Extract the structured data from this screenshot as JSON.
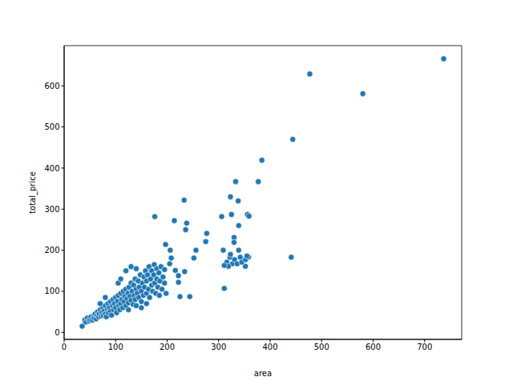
{
  "chart_data": {
    "type": "scatter",
    "x_label": "area",
    "y_label": "total_price",
    "color": "#1f77b4",
    "marker": "circle",
    "xlim": [
      0,
      772
    ],
    "ylim": [
      -17,
      698
    ],
    "xticks": [
      0,
      100,
      200,
      300,
      400,
      500,
      600,
      700
    ],
    "yticks": [
      0,
      100,
      200,
      300,
      400,
      500,
      600
    ],
    "x": [
      35,
      40,
      42,
      45,
      48,
      50,
      52,
      55,
      57,
      58,
      60,
      62,
      64,
      65,
      67,
      68,
      70,
      72,
      73,
      75,
      76,
      78,
      80,
      80,
      82,
      84,
      85,
      86,
      88,
      90,
      90,
      92,
      94,
      95,
      96,
      98,
      100,
      100,
      102,
      104,
      105,
      106,
      108,
      110,
      110,
      112,
      114,
      115,
      116,
      118,
      120,
      120,
      122,
      124,
      125,
      126,
      128,
      130,
      130,
      132,
      134,
      135,
      136,
      138,
      138,
      140,
      140,
      142,
      144,
      145,
      146,
      148,
      150,
      150,
      152,
      154,
      155,
      156,
      158,
      160,
      160,
      162,
      164,
      165,
      166,
      168,
      170,
      170,
      172,
      174,
      175,
      176,
      178,
      180,
      180,
      182,
      184,
      185,
      186,
      188,
      190,
      192,
      195,
      198,
      150,
      125,
      140,
      160,
      120,
      105,
      130,
      80,
      70,
      110,
      737,
      477,
      580,
      444,
      384,
      377,
      333,
      338,
      233,
      323,
      325,
      339,
      356,
      359,
      306,
      176,
      214,
      238,
      236,
      277,
      275,
      330,
      330,
      197,
      309,
      339,
      358,
      441,
      352,
      311,
      225,
      244,
      252,
      256,
      206,
      208,
      234,
      222,
      222,
      205,
      195,
      216,
      316,
      322,
      327,
      331,
      336,
      323,
      342,
      345,
      319,
      352,
      355,
      311
    ],
    "values": [
      15,
      30,
      25,
      35,
      28,
      32,
      38,
      30,
      40,
      35,
      45,
      33,
      42,
      50,
      38,
      45,
      55,
      40,
      48,
      60,
      42,
      52,
      65,
      45,
      38,
      55,
      70,
      48,
      60,
      75,
      52,
      42,
      65,
      80,
      55,
      70,
      85,
      60,
      48,
      75,
      90,
      65,
      55,
      95,
      70,
      80,
      60,
      100,
      75,
      88,
      105,
      65,
      82,
      95,
      72,
      110,
      88,
      120,
      78,
      100,
      68,
      115,
      90,
      130,
      80,
      105,
      155,
      95,
      125,
      85,
      110,
      140,
      100,
      75,
      120,
      90,
      135,
      110,
      150,
      95,
      125,
      140,
      105,
      160,
      85,
      130,
      115,
      150,
      100,
      140,
      165,
      120,
      95,
      130,
      155,
      110,
      145,
      90,
      125,
      160,
      105,
      135,
      120,
      95,
      60,
      55,
      65,
      70,
      150,
      120,
      160,
      85,
      70,
      130,
      666,
      629,
      581,
      470,
      419,
      367,
      367,
      320,
      322,
      330,
      287,
      260,
      287,
      283,
      282,
      282,
      272,
      266,
      250,
      241,
      221,
      231,
      219,
      214,
      200,
      200,
      183,
      183,
      161,
      107,
      87,
      87,
      181,
      200,
      200,
      181,
      148,
      138,
      122,
      167,
      153,
      151,
      171,
      183,
      167,
      177,
      167,
      190,
      183,
      171,
      161,
      177,
      186,
      163
    ]
  }
}
